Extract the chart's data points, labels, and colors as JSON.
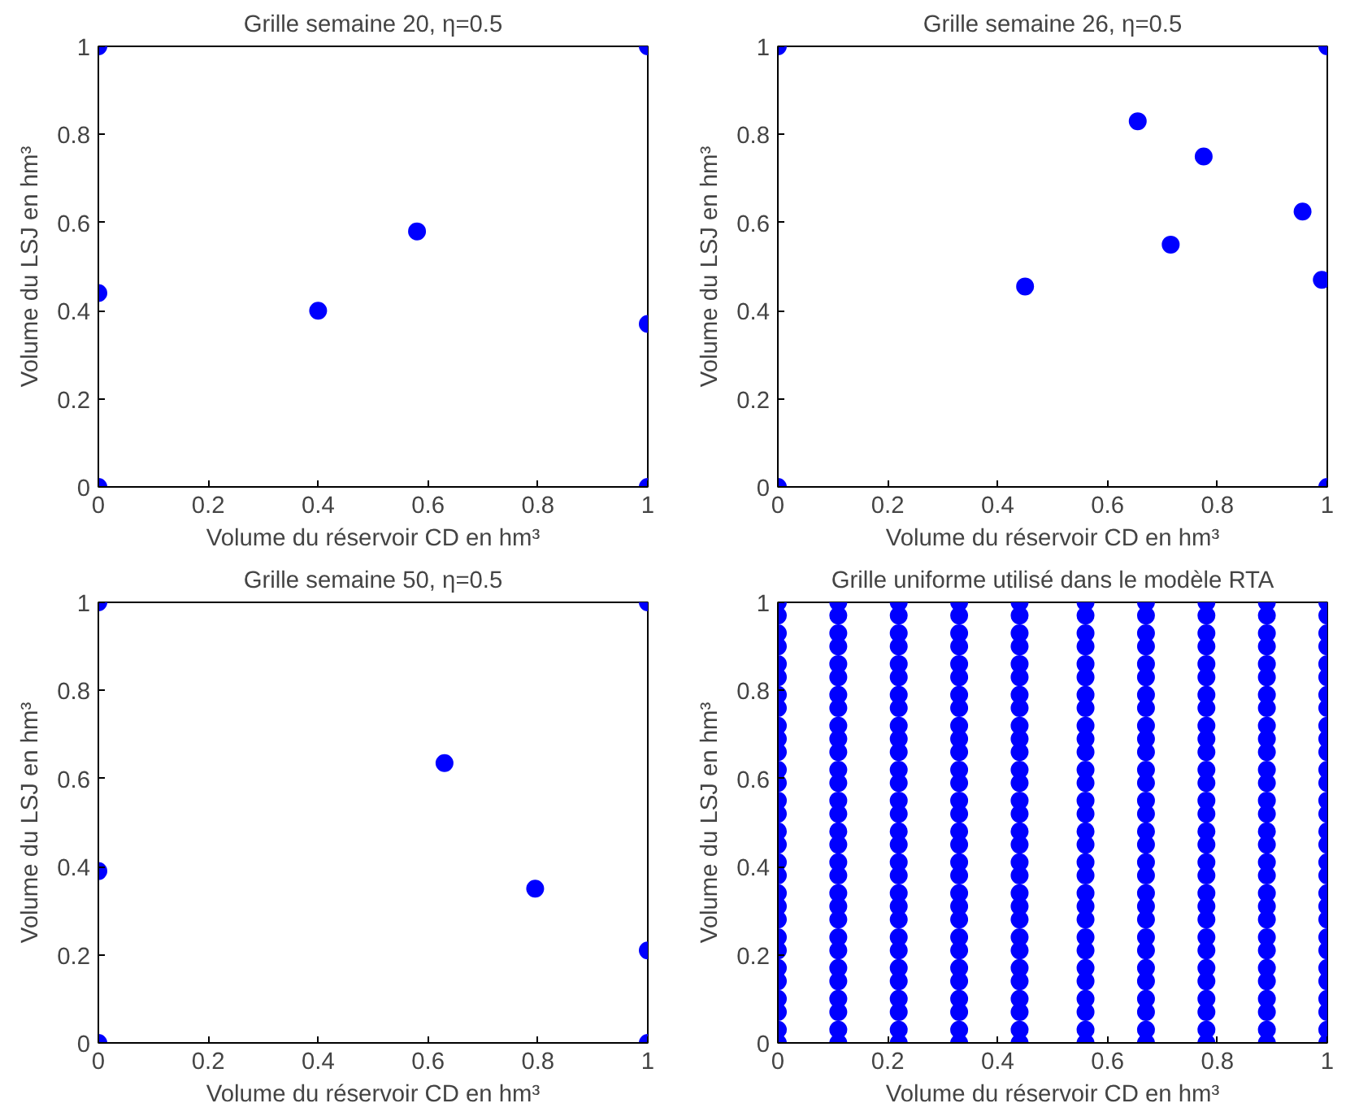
{
  "chart_data": [
    {
      "type": "scatter",
      "title": "Grille semaine 20, η=0.5",
      "xlabel": "Volume du réservoir CD en hm³",
      "ylabel": "Volume du LSJ en hm³",
      "xlim": [
        0,
        1
      ],
      "ylim": [
        0,
        1
      ],
      "xticks": [
        0,
        0.2,
        0.4,
        0.6,
        0.8,
        1
      ],
      "yticks": [
        0,
        0.2,
        0.4,
        0.6,
        0.8,
        1
      ],
      "marker": "circle",
      "series": [
        {
          "color": "#0000ff",
          "x": [
            0,
            0,
            1,
            1,
            0,
            0.4,
            0.58,
            1
          ],
          "values": [
            0,
            1,
            0,
            1,
            0.44,
            0.4,
            0.58,
            0.37
          ]
        }
      ]
    },
    {
      "type": "scatter",
      "title": "Grille semaine 26, η=0.5",
      "xlabel": "Volume du réservoir CD en hm³",
      "ylabel": "Volume du LSJ en hm³",
      "xlim": [
        0,
        1
      ],
      "ylim": [
        0,
        1
      ],
      "xticks": [
        0,
        0.2,
        0.4,
        0.6,
        0.8,
        1
      ],
      "yticks": [
        0,
        0.2,
        0.4,
        0.6,
        0.8,
        1
      ],
      "marker": "circle",
      "series": [
        {
          "color": "#0000ff",
          "x": [
            0,
            0,
            1,
            1,
            0.45,
            0.655,
            0.715,
            0.775,
            0.955,
            0.99
          ],
          "values": [
            0,
            1,
            0,
            1,
            0.455,
            0.83,
            0.55,
            0.75,
            0.625,
            0.47
          ]
        }
      ]
    },
    {
      "type": "scatter",
      "title": "Grille semaine 50, η=0.5",
      "xlabel": "Volume du réservoir CD en hm³",
      "ylabel": "Volume du LSJ en hm³",
      "xlim": [
        0,
        1
      ],
      "ylim": [
        0,
        1
      ],
      "xticks": [
        0,
        0.2,
        0.4,
        0.6,
        0.8,
        1
      ],
      "yticks": [
        0,
        0.2,
        0.4,
        0.6,
        0.8,
        1
      ],
      "marker": "circle",
      "series": [
        {
          "color": "#0000ff",
          "x": [
            0,
            0,
            1,
            1,
            0,
            0.63,
            0.795,
            1
          ],
          "values": [
            0,
            1,
            0,
            1,
            0.39,
            0.635,
            0.35,
            0.21
          ]
        }
      ]
    },
    {
      "type": "scatter",
      "title": "Grille uniforme utilisé dans le modèle RTA",
      "xlabel": "Volume du réservoir CD en hm³",
      "ylabel": "Volume du LSJ en hm³",
      "xlim": [
        0,
        1
      ],
      "ylim": [
        0,
        1
      ],
      "xticks": [
        0,
        0.2,
        0.4,
        0.6,
        0.8,
        1
      ],
      "yticks": [
        0,
        0.2,
        0.4,
        0.6,
        0.8,
        1
      ],
      "marker": "circle",
      "series": [
        {
          "color": "#0000ff",
          "x": [
            0,
            0,
            0,
            0,
            0,
            0,
            0,
            0,
            0,
            0,
            0,
            0,
            0,
            0,
            0,
            0,
            0,
            0,
            0,
            0,
            0,
            0,
            0,
            0,
            0,
            0,
            0,
            0,
            0,
            0
          ],
          "values": [
            0,
            0.03,
            0.07,
            0.1,
            0.14,
            0.17,
            0.21,
            0.24,
            0.28,
            0.31,
            0.34,
            0.38,
            0.41,
            0.45,
            0.48,
            0.52,
            0.55,
            0.59,
            0.62,
            0.66,
            0.69,
            0.72,
            0.76,
            0.79,
            0.83,
            0.86,
            0.9,
            0.93,
            0.97,
            1
          ]
        },
        {
          "color": "#0000ff",
          "x": [
            0.11,
            0.11,
            0.11,
            0.11,
            0.11,
            0.11,
            0.11,
            0.11,
            0.11,
            0.11,
            0.11,
            0.11,
            0.11,
            0.11,
            0.11,
            0.11,
            0.11,
            0.11,
            0.11,
            0.11,
            0.11,
            0.11,
            0.11,
            0.11,
            0.11,
            0.11,
            0.11,
            0.11,
            0.11,
            0.11
          ],
          "values": [
            0,
            0.03,
            0.07,
            0.1,
            0.14,
            0.17,
            0.21,
            0.24,
            0.28,
            0.31,
            0.34,
            0.38,
            0.41,
            0.45,
            0.48,
            0.52,
            0.55,
            0.59,
            0.62,
            0.66,
            0.69,
            0.72,
            0.76,
            0.79,
            0.83,
            0.86,
            0.9,
            0.93,
            0.97,
            1
          ]
        },
        {
          "color": "#0000ff",
          "x": [
            0.22,
            0.22,
            0.22,
            0.22,
            0.22,
            0.22,
            0.22,
            0.22,
            0.22,
            0.22,
            0.22,
            0.22,
            0.22,
            0.22,
            0.22,
            0.22,
            0.22,
            0.22,
            0.22,
            0.22,
            0.22,
            0.22,
            0.22,
            0.22,
            0.22,
            0.22,
            0.22,
            0.22,
            0.22,
            0.22
          ],
          "values": [
            0,
            0.03,
            0.07,
            0.1,
            0.14,
            0.17,
            0.21,
            0.24,
            0.28,
            0.31,
            0.34,
            0.38,
            0.41,
            0.45,
            0.48,
            0.52,
            0.55,
            0.59,
            0.62,
            0.66,
            0.69,
            0.72,
            0.76,
            0.79,
            0.83,
            0.86,
            0.9,
            0.93,
            0.97,
            1
          ]
        },
        {
          "color": "#0000ff",
          "x": [
            0.33,
            0.33,
            0.33,
            0.33,
            0.33,
            0.33,
            0.33,
            0.33,
            0.33,
            0.33,
            0.33,
            0.33,
            0.33,
            0.33,
            0.33,
            0.33,
            0.33,
            0.33,
            0.33,
            0.33,
            0.33,
            0.33,
            0.33,
            0.33,
            0.33,
            0.33,
            0.33,
            0.33,
            0.33,
            0.33
          ],
          "values": [
            0,
            0.03,
            0.07,
            0.1,
            0.14,
            0.17,
            0.21,
            0.24,
            0.28,
            0.31,
            0.34,
            0.38,
            0.41,
            0.45,
            0.48,
            0.52,
            0.55,
            0.59,
            0.62,
            0.66,
            0.69,
            0.72,
            0.76,
            0.79,
            0.83,
            0.86,
            0.9,
            0.93,
            0.97,
            1
          ]
        },
        {
          "color": "#0000ff",
          "x": [
            0.44,
            0.44,
            0.44,
            0.44,
            0.44,
            0.44,
            0.44,
            0.44,
            0.44,
            0.44,
            0.44,
            0.44,
            0.44,
            0.44,
            0.44,
            0.44,
            0.44,
            0.44,
            0.44,
            0.44,
            0.44,
            0.44,
            0.44,
            0.44,
            0.44,
            0.44,
            0.44,
            0.44,
            0.44,
            0.44
          ],
          "values": [
            0,
            0.03,
            0.07,
            0.1,
            0.14,
            0.17,
            0.21,
            0.24,
            0.28,
            0.31,
            0.34,
            0.38,
            0.41,
            0.45,
            0.48,
            0.52,
            0.55,
            0.59,
            0.62,
            0.66,
            0.69,
            0.72,
            0.76,
            0.79,
            0.83,
            0.86,
            0.9,
            0.93,
            0.97,
            1
          ]
        },
        {
          "color": "#0000ff",
          "x": [
            0.56,
            0.56,
            0.56,
            0.56,
            0.56,
            0.56,
            0.56,
            0.56,
            0.56,
            0.56,
            0.56,
            0.56,
            0.56,
            0.56,
            0.56,
            0.56,
            0.56,
            0.56,
            0.56,
            0.56,
            0.56,
            0.56,
            0.56,
            0.56,
            0.56,
            0.56,
            0.56,
            0.56,
            0.56,
            0.56
          ],
          "values": [
            0,
            0.03,
            0.07,
            0.1,
            0.14,
            0.17,
            0.21,
            0.24,
            0.28,
            0.31,
            0.34,
            0.38,
            0.41,
            0.45,
            0.48,
            0.52,
            0.55,
            0.59,
            0.62,
            0.66,
            0.69,
            0.72,
            0.76,
            0.79,
            0.83,
            0.86,
            0.9,
            0.93,
            0.97,
            1
          ]
        },
        {
          "color": "#0000ff",
          "x": [
            0.67,
            0.67,
            0.67,
            0.67,
            0.67,
            0.67,
            0.67,
            0.67,
            0.67,
            0.67,
            0.67,
            0.67,
            0.67,
            0.67,
            0.67,
            0.67,
            0.67,
            0.67,
            0.67,
            0.67,
            0.67,
            0.67,
            0.67,
            0.67,
            0.67,
            0.67,
            0.67,
            0.67,
            0.67,
            0.67
          ],
          "values": [
            0,
            0.03,
            0.07,
            0.1,
            0.14,
            0.17,
            0.21,
            0.24,
            0.28,
            0.31,
            0.34,
            0.38,
            0.41,
            0.45,
            0.48,
            0.52,
            0.55,
            0.59,
            0.62,
            0.66,
            0.69,
            0.72,
            0.76,
            0.79,
            0.83,
            0.86,
            0.9,
            0.93,
            0.97,
            1
          ]
        },
        {
          "color": "#0000ff",
          "x": [
            0.78,
            0.78,
            0.78,
            0.78,
            0.78,
            0.78,
            0.78,
            0.78,
            0.78,
            0.78,
            0.78,
            0.78,
            0.78,
            0.78,
            0.78,
            0.78,
            0.78,
            0.78,
            0.78,
            0.78,
            0.78,
            0.78,
            0.78,
            0.78,
            0.78,
            0.78,
            0.78,
            0.78,
            0.78,
            0.78
          ],
          "values": [
            0,
            0.03,
            0.07,
            0.1,
            0.14,
            0.17,
            0.21,
            0.24,
            0.28,
            0.31,
            0.34,
            0.38,
            0.41,
            0.45,
            0.48,
            0.52,
            0.55,
            0.59,
            0.62,
            0.66,
            0.69,
            0.72,
            0.76,
            0.79,
            0.83,
            0.86,
            0.9,
            0.93,
            0.97,
            1
          ]
        },
        {
          "color": "#0000ff",
          "x": [
            0.89,
            0.89,
            0.89,
            0.89,
            0.89,
            0.89,
            0.89,
            0.89,
            0.89,
            0.89,
            0.89,
            0.89,
            0.89,
            0.89,
            0.89,
            0.89,
            0.89,
            0.89,
            0.89,
            0.89,
            0.89,
            0.89,
            0.89,
            0.89,
            0.89,
            0.89,
            0.89,
            0.89,
            0.89,
            0.89
          ],
          "values": [
            0,
            0.03,
            0.07,
            0.1,
            0.14,
            0.17,
            0.21,
            0.24,
            0.28,
            0.31,
            0.34,
            0.38,
            0.41,
            0.45,
            0.48,
            0.52,
            0.55,
            0.59,
            0.62,
            0.66,
            0.69,
            0.72,
            0.76,
            0.79,
            0.83,
            0.86,
            0.9,
            0.93,
            0.97,
            1
          ]
        },
        {
          "color": "#0000ff",
          "x": [
            1,
            1,
            1,
            1,
            1,
            1,
            1,
            1,
            1,
            1,
            1,
            1,
            1,
            1,
            1,
            1,
            1,
            1,
            1,
            1,
            1,
            1,
            1,
            1,
            1,
            1,
            1,
            1,
            1,
            1
          ],
          "values": [
            0,
            0.03,
            0.07,
            0.1,
            0.14,
            0.17,
            0.21,
            0.24,
            0.28,
            0.31,
            0.34,
            0.38,
            0.41,
            0.45,
            0.48,
            0.52,
            0.55,
            0.59,
            0.62,
            0.66,
            0.69,
            0.72,
            0.76,
            0.79,
            0.83,
            0.86,
            0.9,
            0.93,
            0.97,
            1
          ]
        }
      ]
    }
  ]
}
